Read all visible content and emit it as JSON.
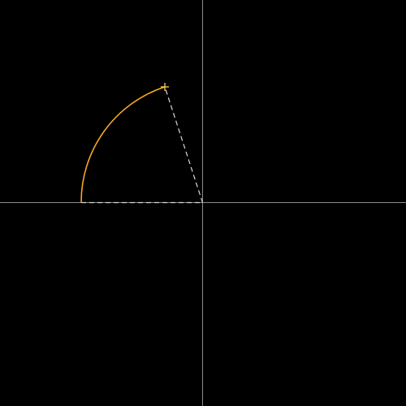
{
  "canvas": {
    "background": "#000000"
  },
  "colors": {
    "axis": "#8a8a8a",
    "arc": "#f5a623",
    "guide": "#d9d9d9",
    "cursor": "#ffd34d"
  },
  "icons": {
    "cursor": "crosshair-plus-icon"
  }
}
